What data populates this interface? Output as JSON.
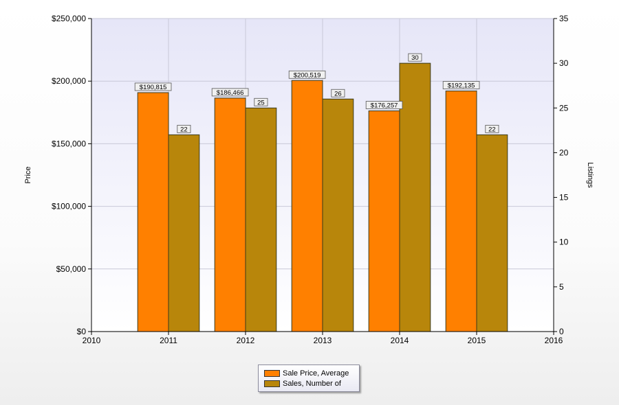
{
  "chart_data": {
    "type": "bar",
    "x_ticks": [
      "2010",
      "2011",
      "2012",
      "2013",
      "2014",
      "2015",
      "2016"
    ],
    "categories": [
      "2011",
      "2012",
      "2013",
      "2014",
      "2015"
    ],
    "series": [
      {
        "name": "Sale Price, Average",
        "axis": "left",
        "color": "#ff8000",
        "values": [
          190815,
          186466,
          200519,
          176257,
          192135
        ],
        "labels": [
          "$190,815",
          "$186,466",
          "$200,519",
          "$176,257",
          "$192,135"
        ]
      },
      {
        "name": "Sales, Number of",
        "axis": "right",
        "color": "#b8860b",
        "values": [
          22,
          25,
          26,
          30,
          22
        ],
        "labels": [
          "22",
          "25",
          "26",
          "30",
          "22"
        ]
      }
    ],
    "ylabel": "Price",
    "ylim": [
      0,
      250000
    ],
    "y_ticks": [
      "$0",
      "$50,000",
      "$100,000",
      "$150,000",
      "$200,000",
      "$250,000"
    ],
    "y2label": "Listings",
    "y2lim": [
      0,
      35
    ],
    "y2_ticks": [
      "0",
      "5",
      "10",
      "15",
      "20",
      "25",
      "30",
      "35"
    ],
    "grid": true,
    "legend_position": "bottom-center"
  }
}
